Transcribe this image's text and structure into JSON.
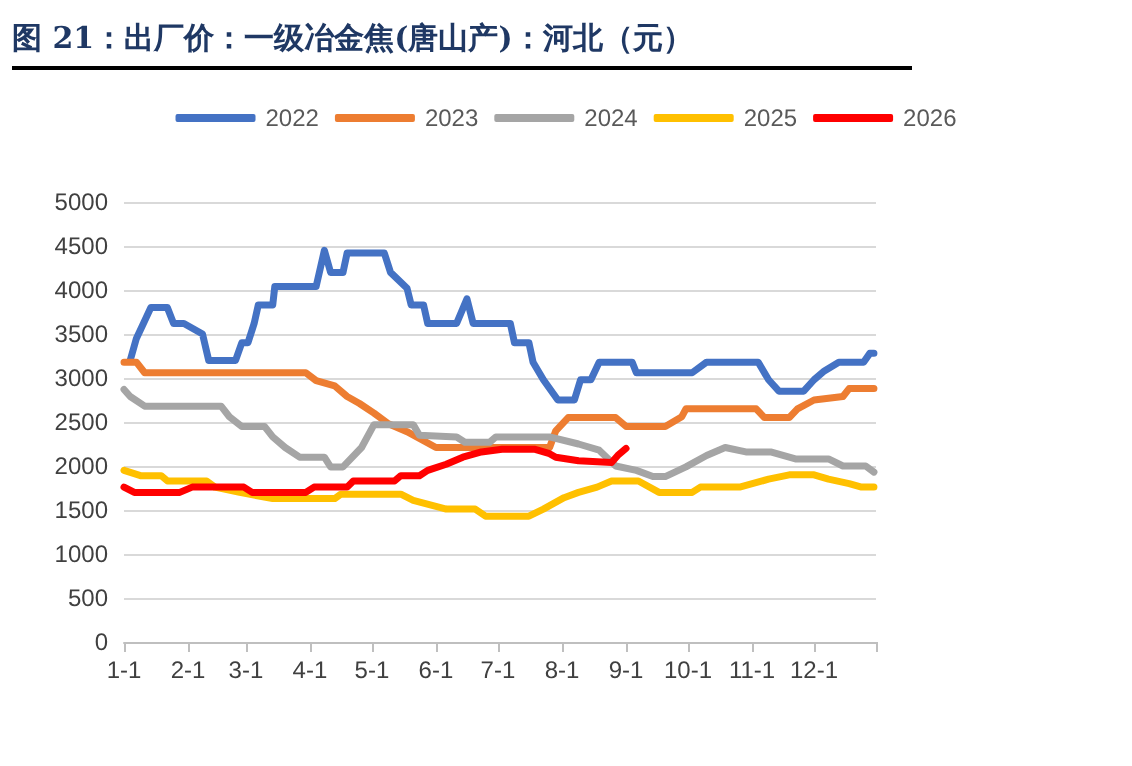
{
  "chart_data": {
    "type": "line",
    "title": "图 21：出厂价：一级冶金焦(唐山产)：河北（元）",
    "legend": "top",
    "grid": "y",
    "marker": "none",
    "line_style": "solid",
    "xlim": [
      "--01-01",
      "--12-31"
    ],
    "xticks": [
      {
        "value": "--01-01",
        "label": "1-1"
      },
      {
        "value": "--02-01",
        "label": "2-1"
      },
      {
        "value": "--03-01",
        "label": "3-1"
      },
      {
        "value": "--04-01",
        "label": "4-1"
      },
      {
        "value": "--05-01",
        "label": "5-1"
      },
      {
        "value": "--06-01",
        "label": "6-1"
      },
      {
        "value": "--07-01",
        "label": "7-1"
      },
      {
        "value": "--08-01",
        "label": "8-1"
      },
      {
        "value": "--09-01",
        "label": "9-1"
      },
      {
        "value": "--10-01",
        "label": "10-1"
      },
      {
        "value": "--11-01",
        "label": "11-1"
      },
      {
        "value": "--12-01",
        "label": "12-1"
      }
    ],
    "ylim": [
      0,
      5000
    ],
    "yticks": [
      0,
      500,
      1000,
      1500,
      2000,
      2500,
      3000,
      3500,
      4000,
      4500,
      5000
    ],
    "series": [
      {
        "name": "2022",
        "color": "#4472c4",
        "x": [
          "--01-04",
          "--01-07",
          "--01-10",
          "--01-14",
          "--01-22",
          "--01-25",
          "--01-30",
          "--02-08",
          "--02-11",
          "--02-24",
          "--02-27",
          "--03-02",
          "--03-05",
          "--03-07",
          "--03-14",
          "--03-15",
          "--04-04",
          "--04-08",
          "--04-11",
          "--04-17",
          "--04-19",
          "--05-07",
          "--05-10",
          "--05-18",
          "--05-20",
          "--05-26",
          "--05-28",
          "--06-11",
          "--06-16",
          "--06-19",
          "--07-07",
          "--07-09",
          "--07-16",
          "--07-18",
          "--07-23",
          "--07-30",
          "--08-07",
          "--08-10",
          "--08-15",
          "--08-19",
          "--09-04",
          "--09-06",
          "--10-03",
          "--10-10",
          "--11-04",
          "--11-09",
          "--11-14",
          "--11-26",
          "--12-01",
          "--12-06",
          "--12-13",
          "--12-25",
          "--12-28",
          "--12-30"
        ],
        "values": [
          3200,
          3450,
          3600,
          3800,
          3800,
          3620,
          3620,
          3500,
          3200,
          3200,
          3400,
          3400,
          3620,
          3830,
          3830,
          4040,
          4040,
          4450,
          4200,
          4200,
          4420,
          4420,
          4200,
          4020,
          3830,
          3830,
          3620,
          3620,
          3900,
          3620,
          3620,
          3400,
          3400,
          3180,
          2980,
          2750,
          2750,
          2980,
          2980,
          3180,
          3180,
          3060,
          3060,
          3180,
          3180,
          2980,
          2850,
          2850,
          2980,
          3080,
          3180,
          3180,
          3280,
          3280
        ]
      },
      {
        "name": "2023",
        "color": "#ed7d31",
        "x": [
          "--01-01",
          "--01-07",
          "--01-11",
          "--03-30",
          "--04-04",
          "--04-13",
          "--04-19",
          "--04-25",
          "--05-02",
          "--05-09",
          "--05-18",
          "--06-01",
          "--07-26",
          "--07-29",
          "--08-04",
          "--08-27",
          "--09-01",
          "--09-20",
          "--09-28",
          "--09-30",
          "--11-03",
          "--11-07",
          "--11-19",
          "--11-23",
          "--12-01",
          "--12-15",
          "--12-18",
          "--12-30"
        ],
        "values": [
          3180,
          3180,
          3060,
          3060,
          2970,
          2910,
          2790,
          2710,
          2600,
          2480,
          2390,
          2210,
          2210,
          2400,
          2550,
          2550,
          2450,
          2450,
          2560,
          2650,
          2650,
          2550,
          2550,
          2650,
          2750,
          2790,
          2880,
          2880
        ]
      },
      {
        "name": "2024",
        "color": "#a5a5a5",
        "x": [
          "--01-01",
          "--01-04",
          "--01-11",
          "--02-17",
          "--02-21",
          "--02-27",
          "--03-10",
          "--03-14",
          "--03-20",
          "--03-27",
          "--04-08",
          "--04-11",
          "--04-17",
          "--04-26",
          "--05-02",
          "--05-21",
          "--05-24",
          "--06-11",
          "--06-15",
          "--06-27",
          "--06-30",
          "--07-26",
          "--08-09",
          "--08-19",
          "--08-27",
          "--09-06",
          "--09-14",
          "--09-20",
          "--09-30",
          "--10-10",
          "--10-19",
          "--10-29",
          "--11-10",
          "--11-22",
          "--12-08",
          "--12-15",
          "--12-26",
          "--12-30"
        ],
        "values": [
          2870,
          2790,
          2680,
          2680,
          2560,
          2450,
          2450,
          2330,
          2210,
          2100,
          2100,
          1990,
          1990,
          2210,
          2470,
          2470,
          2350,
          2330,
          2270,
          2270,
          2330,
          2330,
          2250,
          2180,
          2000,
          1950,
          1880,
          1880,
          1990,
          2120,
          2210,
          2160,
          2160,
          2080,
          2080,
          2000,
          2000,
          1930
        ]
      },
      {
        "name": "2025",
        "color": "#ffc000",
        "x": [
          "--01-01",
          "--01-09",
          "--01-19",
          "--01-22",
          "--02-10",
          "--02-14",
          "--02-26",
          "--03-14",
          "--04-13",
          "--04-16",
          "--05-15",
          "--05-21",
          "--06-06",
          "--06-20",
          "--06-25",
          "--07-16",
          "--07-23",
          "--08-02",
          "--08-09",
          "--08-18",
          "--08-25",
          "--09-07",
          "--09-17",
          "--10-03",
          "--10-07",
          "--10-26",
          "--11-09",
          "--11-19",
          "--12-01",
          "--12-08",
          "--12-18",
          "--12-24",
          "--12-30"
        ],
        "values": [
          1950,
          1890,
          1890,
          1830,
          1830,
          1760,
          1700,
          1630,
          1630,
          1680,
          1680,
          1610,
          1510,
          1510,
          1430,
          1430,
          1510,
          1640,
          1700,
          1760,
          1830,
          1830,
          1700,
          1700,
          1760,
          1760,
          1850,
          1900,
          1900,
          1850,
          1800,
          1760,
          1760
        ]
      },
      {
        "name": "2026",
        "color": "#ff0000",
        "x": [
          "--01-01",
          "--01-06",
          "--01-28",
          "--02-03",
          "--02-28",
          "--03-04",
          "--03-30",
          "--04-03",
          "--04-19",
          "--04-22",
          "--05-12",
          "--05-15",
          "--05-24",
          "--05-28",
          "--06-06",
          "--06-14",
          "--06-23",
          "--07-03",
          "--07-19",
          "--07-26",
          "--07-29",
          "--08-09",
          "--08-25",
          "--08-28",
          "--09-01"
        ],
        "values": [
          1760,
          1700,
          1700,
          1760,
          1760,
          1700,
          1700,
          1760,
          1760,
          1830,
          1830,
          1890,
          1890,
          1950,
          2020,
          2100,
          2160,
          2190,
          2190,
          2140,
          2100,
          2060,
          2040,
          2120,
          2200
        ]
      }
    ]
  }
}
